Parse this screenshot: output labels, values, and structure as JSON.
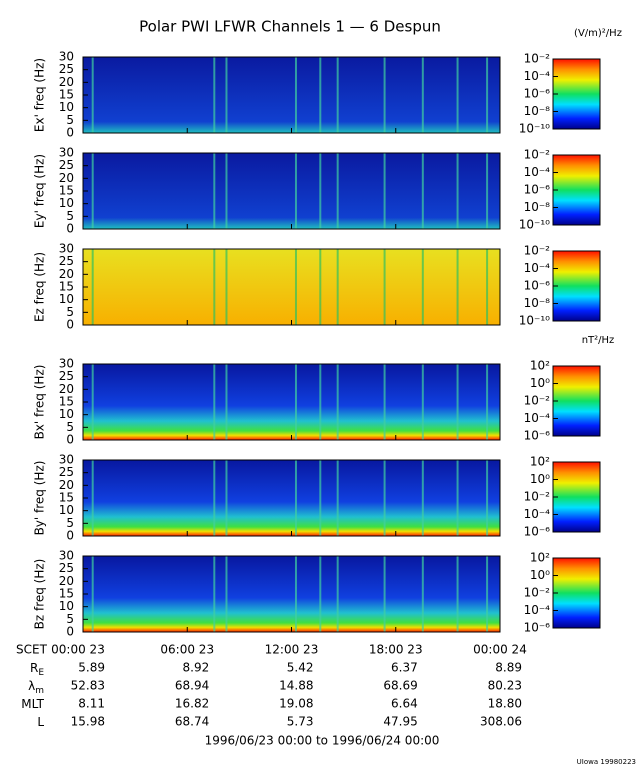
{
  "title": "Polar PWI LFWR Channels 1 — 6 Despun",
  "chart_data": [
    {
      "type": "spectrogram",
      "ylabel": "Ex' freq (Hz)",
      "ylim": [
        0,
        30
      ],
      "yticks": [
        0,
        5,
        10,
        15,
        20,
        25,
        30
      ],
      "colorbar_units": "(V/m)²/Hz",
      "clim": [
        1e-10,
        0.01
      ],
      "log_color": true,
      "cticks": [
        {
          "value": 0.01,
          "label": "10⁻²"
        },
        {
          "value": 0.0001,
          "label": "10⁻⁴"
        },
        {
          "value": 1e-06,
          "label": "10⁻⁶"
        },
        {
          "value": 1e-08,
          "label": "10⁻⁸"
        },
        {
          "value": 1e-10,
          "label": "10⁻¹⁰"
        }
      ]
    },
    {
      "type": "spectrogram",
      "ylabel": "Ey' freq (Hz)",
      "ylim": [
        0,
        30
      ],
      "yticks": [
        0,
        5,
        10,
        15,
        20,
        25,
        30
      ],
      "clim": [
        1e-10,
        0.01
      ],
      "log_color": true,
      "cticks": [
        {
          "value": 0.01,
          "label": "10⁻²"
        },
        {
          "value": 0.0001,
          "label": "10⁻⁴"
        },
        {
          "value": 1e-06,
          "label": "10⁻⁶"
        },
        {
          "value": 1e-08,
          "label": "10⁻⁸"
        },
        {
          "value": 1e-10,
          "label": "10⁻¹⁰"
        }
      ]
    },
    {
      "type": "spectrogram",
      "ylabel": "Ez freq (Hz)",
      "ylim": [
        0,
        30
      ],
      "yticks": [
        0,
        5,
        10,
        15,
        20,
        25,
        30
      ],
      "clim": [
        1e-10,
        0.01
      ],
      "log_color": true,
      "cticks": [
        {
          "value": 0.01,
          "label": "10⁻²"
        },
        {
          "value": 0.0001,
          "label": "10⁻⁴"
        },
        {
          "value": 1e-06,
          "label": "10⁻⁶"
        },
        {
          "value": 1e-08,
          "label": "10⁻⁸"
        },
        {
          "value": 1e-10,
          "label": "10⁻¹⁰"
        }
      ]
    },
    {
      "type": "spectrogram",
      "ylabel": "Bx' freq (Hz)",
      "ylim": [
        0,
        30
      ],
      "yticks": [
        0,
        5,
        10,
        15,
        20,
        25,
        30
      ],
      "colorbar_units": "nT²/Hz",
      "clim": [
        1e-06,
        100.0
      ],
      "log_color": true,
      "cticks": [
        {
          "value": 100,
          "label": "10²"
        },
        {
          "value": 1,
          "label": "10⁰"
        },
        {
          "value": 0.01,
          "label": "10⁻²"
        },
        {
          "value": 0.0001,
          "label": "10⁻⁴"
        },
        {
          "value": 1e-06,
          "label": "10⁻⁶"
        }
      ]
    },
    {
      "type": "spectrogram",
      "ylabel": "By' freq (Hz)",
      "ylim": [
        0,
        30
      ],
      "yticks": [
        0,
        5,
        10,
        15,
        20,
        25,
        30
      ],
      "clim": [
        1e-06,
        100.0
      ],
      "log_color": true,
      "cticks": [
        {
          "value": 100,
          "label": "10²"
        },
        {
          "value": 1,
          "label": "10⁰"
        },
        {
          "value": 0.01,
          "label": "10⁻²"
        },
        {
          "value": 0.0001,
          "label": "10⁻⁴"
        },
        {
          "value": 1e-06,
          "label": "10⁻⁶"
        }
      ]
    },
    {
      "type": "spectrogram",
      "ylabel": "Bz freq (Hz)",
      "ylim": [
        0,
        30
      ],
      "yticks": [
        0,
        5,
        10,
        15,
        20,
        25,
        30
      ],
      "clim": [
        1e-06,
        100.0
      ],
      "log_color": true,
      "cticks": [
        {
          "value": 100,
          "label": "10²"
        },
        {
          "value": 1,
          "label": "10⁰"
        },
        {
          "value": 0.01,
          "label": "10⁻²"
        },
        {
          "value": 0.0001,
          "label": "10⁻⁴"
        },
        {
          "value": 1e-06,
          "label": "10⁻⁶"
        }
      ]
    }
  ],
  "time_axis": {
    "label": "SCET",
    "xlim": [
      0,
      24
    ],
    "xticks": [
      {
        "value": 0,
        "label": "00:00 23"
      },
      {
        "value": 6,
        "label": "06:00 23"
      },
      {
        "value": 12,
        "label": "12:00 23"
      },
      {
        "value": 18,
        "label": "18:00 23"
      },
      {
        "value": 24,
        "label": "00:00 24"
      }
    ]
  },
  "ephemeris": [
    {
      "label": "R",
      "sub": "E",
      "values": [
        "5.89",
        "8.92",
        "5.42",
        "6.37",
        "8.89"
      ]
    },
    {
      "label": "λ",
      "sub": "m",
      "values": [
        "52.83",
        "68.94",
        "14.88",
        "68.69",
        "80.23"
      ]
    },
    {
      "label": "MLT",
      "values": [
        "8.11",
        "16.82",
        "19.08",
        "6.64",
        "18.80"
      ]
    },
    {
      "label": "L",
      "values": [
        "15.98",
        "68.74",
        "5.73",
        "47.95",
        "308.06"
      ]
    }
  ],
  "range": "1996/06/23 00:00 to 1996/06/24 00:00",
  "credit": "UIowa 19980223"
}
